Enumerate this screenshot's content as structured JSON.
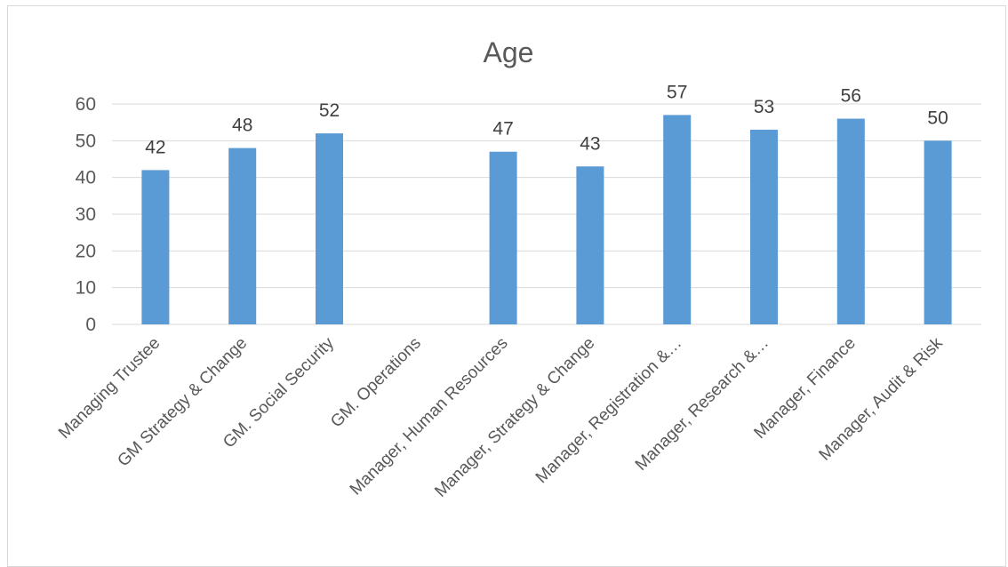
{
  "chart_data": {
    "type": "bar",
    "title": "Age",
    "xlabel": "",
    "ylabel": "",
    "categories": [
      "Managing Trustee",
      "GM Strategy & Change",
      "GM. Social Security",
      "GM. Operations",
      "Manager, Human Resources",
      "Manager, Strategy & Change",
      "Manager, Registration &…",
      "Manager, Research &…",
      "Manager, Finance",
      "Manager, Audit & Risk"
    ],
    "values": [
      42,
      48,
      52,
      null,
      47,
      43,
      57,
      53,
      56,
      50
    ],
    "data_labels": [
      "42",
      "48",
      "52",
      "",
      "47",
      "43",
      "57",
      "53",
      "56",
      "50"
    ],
    "ylim": [
      0,
      60
    ],
    "yticks": [
      0,
      10,
      20,
      30,
      40,
      50,
      60
    ],
    "ytick_labels": [
      "0",
      "10",
      "20",
      "30",
      "40",
      "50",
      "60"
    ],
    "grid": true,
    "legend": "none",
    "colors": {
      "bar": "#5b9bd5"
    }
  }
}
